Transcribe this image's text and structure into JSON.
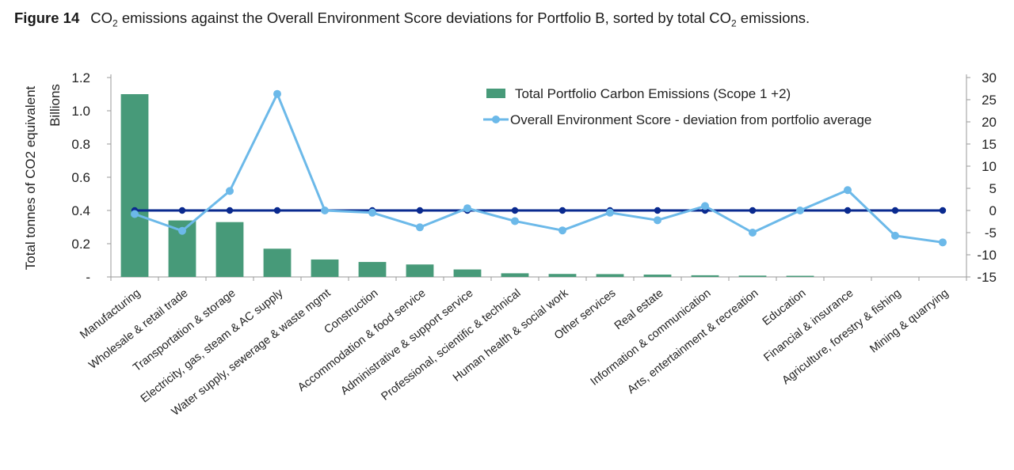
{
  "figure": {
    "label": "Figure 14",
    "caption_before_1": "CO",
    "sub_1": "2",
    "caption_middle": " emissions against the Overall Environment Score deviations for Portfolio B, sorted by total CO",
    "sub_2": "2",
    "caption_after": " emissions."
  },
  "chart_data": {
    "type": "bar+line",
    "categories": [
      "Manufacturing",
      "Wholesale & retail trade",
      "Transportation & storage",
      "Electricity, gas, steam & AC supply",
      "Water supply, sewerage & waste mgmt",
      "Construction",
      "Accommodation & food service",
      "Administrative & support service",
      "Professional, scientific & technical",
      "Human health & social work",
      "Other services",
      "Real estate",
      "Information & communication",
      "Arts, entertainment & recreation",
      "Education",
      "Financial & insurance",
      "Agriculture, forestry & fishing",
      "Mining & quarrying"
    ],
    "series": [
      {
        "name": "Total Portfolio Carbon Emissions (Scope 1 +2)",
        "axis": "left",
        "kind": "bar",
        "color": "#479a79",
        "values": [
          1.1,
          0.34,
          0.33,
          0.17,
          0.105,
          0.09,
          0.075,
          0.045,
          0.022,
          0.018,
          0.017,
          0.014,
          0.01,
          0.008,
          0.007,
          0.0,
          0.0,
          0.0
        ]
      },
      {
        "name": "Overall Environment Score - deviation from portfolio average",
        "axis": "right",
        "kind": "line",
        "color": "#6cb9e9",
        "values": [
          -0.8,
          -4.6,
          4.4,
          26.3,
          0.0,
          -0.5,
          -3.8,
          0.5,
          -2.4,
          -4.5,
          -0.5,
          -2.2,
          1.0,
          -5.0,
          0.0,
          4.6,
          -5.7,
          -7.2
        ]
      },
      {
        "kind": "reference-line",
        "axis": "right",
        "color": "#0a2a8f",
        "values": [
          0,
          0,
          0,
          0,
          0,
          0,
          0,
          0,
          0,
          0,
          0,
          0,
          0,
          0,
          0,
          0,
          0,
          0
        ]
      }
    ],
    "y_left": {
      "label": "Total tonnes of CO2 equivalent",
      "unit_label": "Billions",
      "ylim": [
        0,
        1.2
      ],
      "ticks": [
        0,
        0.2,
        0.4,
        0.6,
        0.8,
        1.0,
        1.2
      ],
      "tick_labels": [
        "-",
        "0.2",
        "0.4",
        "0.6",
        "0.8",
        "1.0",
        "1.2"
      ]
    },
    "y_right": {
      "ylim": [
        -15,
        30
      ],
      "ticks": [
        -15,
        -10,
        -5,
        0,
        5,
        10,
        15,
        20,
        25,
        30
      ],
      "tick_labels": [
        "-15",
        "-10",
        "-5",
        "0",
        "5",
        "10",
        "15",
        "20",
        "25",
        "30"
      ]
    },
    "grid": false,
    "legend_position": "top-right"
  }
}
